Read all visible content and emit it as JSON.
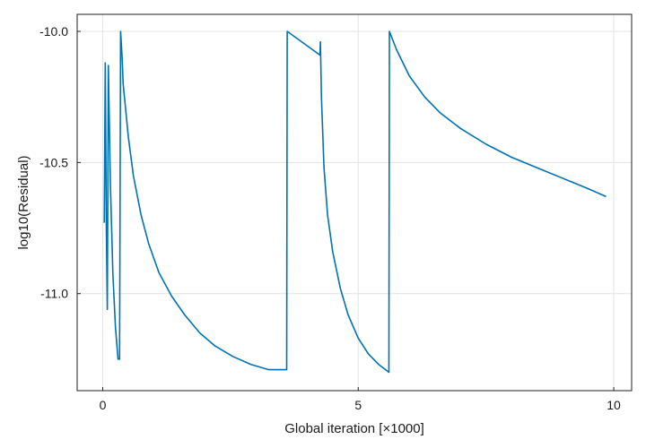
{
  "chart_data": {
    "type": "line",
    "title": "",
    "xlabel": "Global iteration [×1000]",
    "ylabel": "log10(Residual)",
    "xlim": [
      -0.5,
      10.35
    ],
    "ylim": [
      -11.37,
      -9.935
    ],
    "grid": true,
    "x_ticks": [
      {
        "value": 0,
        "label": "0"
      },
      {
        "value": 5,
        "label": "5"
      },
      {
        "value": 10,
        "label": "10"
      }
    ],
    "y_ticks": [
      {
        "value": -10.0,
        "label": "-10.0"
      },
      {
        "value": -10.5,
        "label": "-10.5"
      },
      {
        "value": -11.0,
        "label": "-11.0"
      }
    ],
    "series": [
      {
        "color": "#0072b2",
        "x": [
          0.03,
          0.05,
          0.07,
          0.09,
          0.11,
          0.15,
          0.2,
          0.25,
          0.3,
          0.33,
          0.35,
          0.38,
          0.4,
          0.5,
          0.6,
          0.75,
          0.9,
          1.1,
          1.35,
          1.6,
          1.9,
          2.2,
          2.55,
          2.9,
          3.25,
          3.6,
          3.61,
          4.25,
          4.26,
          4.28,
          4.33,
          4.4,
          4.5,
          4.65,
          4.8,
          5.0,
          5.2,
          5.4,
          5.6,
          5.61,
          5.75,
          6.0,
          6.3,
          6.6,
          7.0,
          7.5,
          8.0,
          8.5,
          9.0,
          9.5,
          9.85
        ],
        "y": [
          -10.73,
          -10.12,
          -10.73,
          -11.06,
          -10.13,
          -10.58,
          -10.93,
          -11.13,
          -11.25,
          -11.25,
          -10.0,
          -10.1,
          -10.2,
          -10.4,
          -10.55,
          -10.7,
          -10.81,
          -10.92,
          -11.01,
          -11.08,
          -11.15,
          -11.2,
          -11.24,
          -11.27,
          -11.29,
          -11.29,
          -10.0,
          -10.09,
          -10.04,
          -10.25,
          -10.52,
          -10.7,
          -10.84,
          -10.98,
          -11.08,
          -11.17,
          -11.23,
          -11.27,
          -11.3,
          -10.0,
          -10.07,
          -10.17,
          -10.25,
          -10.31,
          -10.37,
          -10.43,
          -10.48,
          -10.52,
          -10.56,
          -10.6,
          -10.63
        ]
      }
    ]
  }
}
